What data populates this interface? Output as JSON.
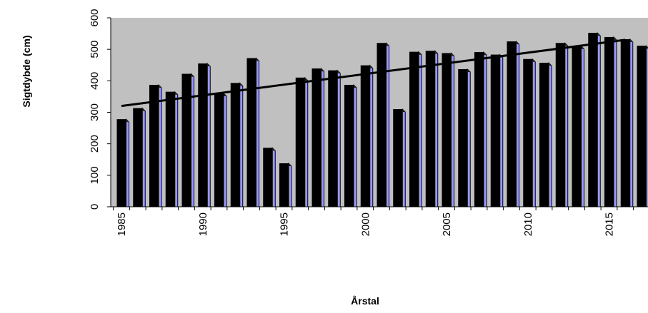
{
  "chart_data": {
    "type": "bar",
    "title": "",
    "xlabel": "Årstal",
    "ylabel": "Sigtdybde (cm)",
    "ylim": [
      0,
      600
    ],
    "yticks": [
      "0",
      "100",
      "200",
      "300",
      "400",
      "500",
      "600"
    ],
    "xtick_labels": [
      "1985",
      "1990",
      "1995",
      "2000",
      "2005",
      "2010",
      "2015"
    ],
    "grid": false,
    "legend": "none",
    "x": [
      1985,
      1986,
      1987,
      1988,
      1989,
      1990,
      1991,
      1992,
      1993,
      1994,
      1995,
      1996,
      1997,
      1998,
      1999,
      2000,
      2001,
      2002,
      2003,
      2004,
      2005,
      2006,
      2007,
      2008,
      2009,
      2010,
      2011,
      2012,
      2013,
      2014,
      2015,
      2016,
      2017
    ],
    "values": [
      278,
      313,
      387,
      365,
      422,
      455,
      360,
      393,
      472,
      187,
      138,
      410,
      439,
      433,
      387,
      449,
      520,
      310,
      492,
      495,
      488,
      437,
      491,
      483,
      525,
      469,
      457,
      520,
      510,
      552,
      539,
      532,
      511
    ],
    "trendline": {
      "start": [
        1985,
        320
      ],
      "end": [
        2016,
        530
      ]
    },
    "colors": {
      "plot_background": "#c0c0c0",
      "bar_front": "#000000",
      "bar_side": "#9999ff",
      "trendline": "#000000"
    }
  }
}
